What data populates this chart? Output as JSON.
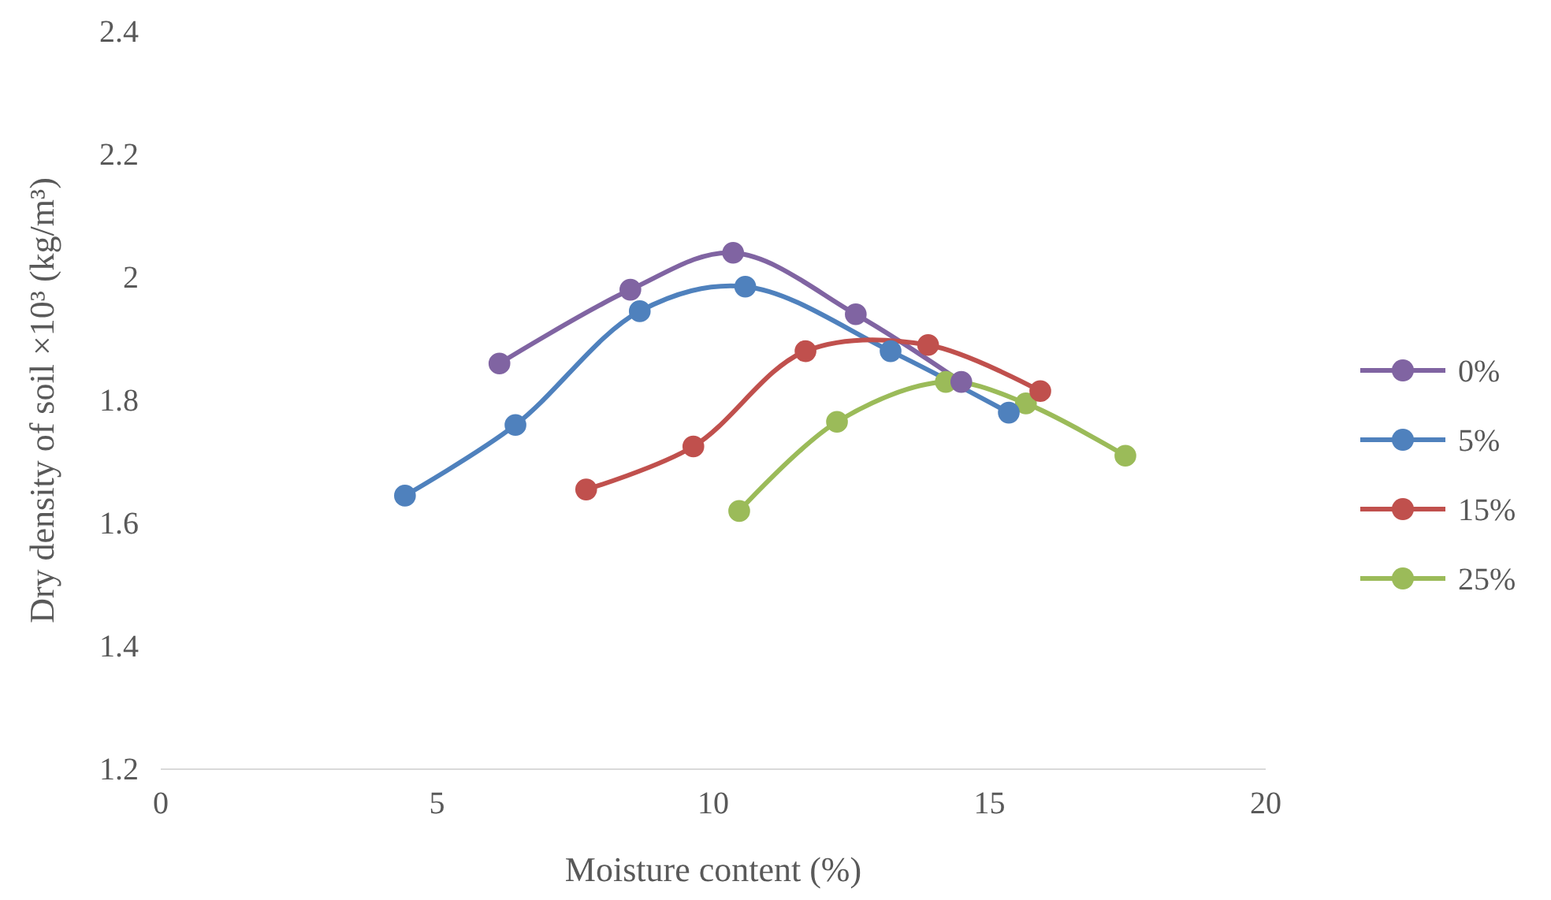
{
  "chart_data": {
    "type": "line",
    "xlabel": "Moisture content (%)",
    "ylabel": "Dry density of soil ×10³ (kg/m³)",
    "xlim": [
      0,
      20
    ],
    "xticks": [
      0,
      5,
      10,
      15,
      20
    ],
    "ylim": [
      1.2,
      2.4
    ],
    "yticks": [
      1.2,
      1.4,
      1.6,
      1.8,
      2,
      2.2,
      2.4
    ],
    "grid": false,
    "legend": "right",
    "marker": "circle",
    "line_style": "solid",
    "series": [
      {
        "name": "0%",
        "color": "#8064a2",
        "x": [
          6.13,
          8.5,
          10.36,
          12.58,
          14.49
        ],
        "values": [
          1.86,
          1.98,
          2.04,
          1.94,
          1.83
        ]
      },
      {
        "name": "5%",
        "color": "#4f81bd",
        "x": [
          4.42,
          6.42,
          8.67,
          10.58,
          13.21,
          15.35
        ],
        "values": [
          1.645,
          1.76,
          1.945,
          1.985,
          1.88,
          1.78
        ]
      },
      {
        "name": "15%",
        "color": "#c0504d",
        "x": [
          7.7,
          9.64,
          11.67,
          13.89,
          15.92
        ],
        "values": [
          1.655,
          1.725,
          1.88,
          1.89,
          1.815
        ]
      },
      {
        "name": "25%",
        "color": "#9bbb59",
        "x": [
          10.47,
          12.24,
          14.21,
          15.66,
          17.46
        ],
        "values": [
          1.62,
          1.765,
          1.83,
          1.795,
          1.71
        ]
      }
    ]
  }
}
